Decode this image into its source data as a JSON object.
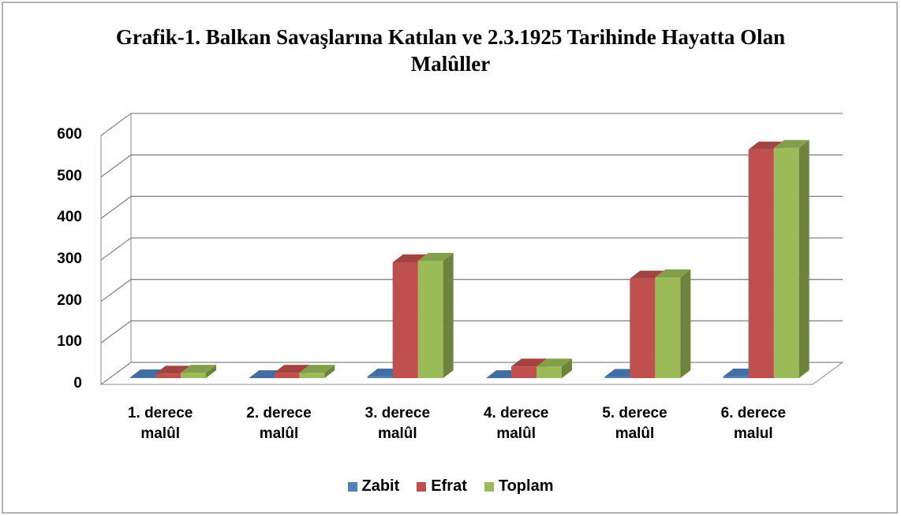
{
  "chart_data": {
    "type": "bar3d",
    "title": "Grafik-1. Balkan Savaşlarına Katılan ve 2.3.1925 Tarihinde Hayatta Olan Malûller",
    "categories": [
      "1. derece malûl",
      "2. derece malûl",
      "3. derece malûl",
      "4. derece malûl",
      "5. derece malûl",
      "6. derece malul"
    ],
    "series": [
      {
        "name": "Zabit",
        "color": "#4f81bd",
        "values": [
          2,
          0,
          4,
          0,
          3,
          4
        ]
      },
      {
        "name": "Efrat",
        "color": "#c0504d",
        "values": [
          11,
          13,
          279,
          28,
          240,
          551
        ]
      },
      {
        "name": "Toplam",
        "color": "#9bbb59",
        "values": [
          13,
          13,
          283,
          28,
          243,
          555
        ]
      }
    ],
    "ylim": [
      0,
      600
    ],
    "yticks": [
      0,
      100,
      200,
      300,
      400,
      500,
      600
    ],
    "grid": true,
    "legend": "bottom"
  }
}
